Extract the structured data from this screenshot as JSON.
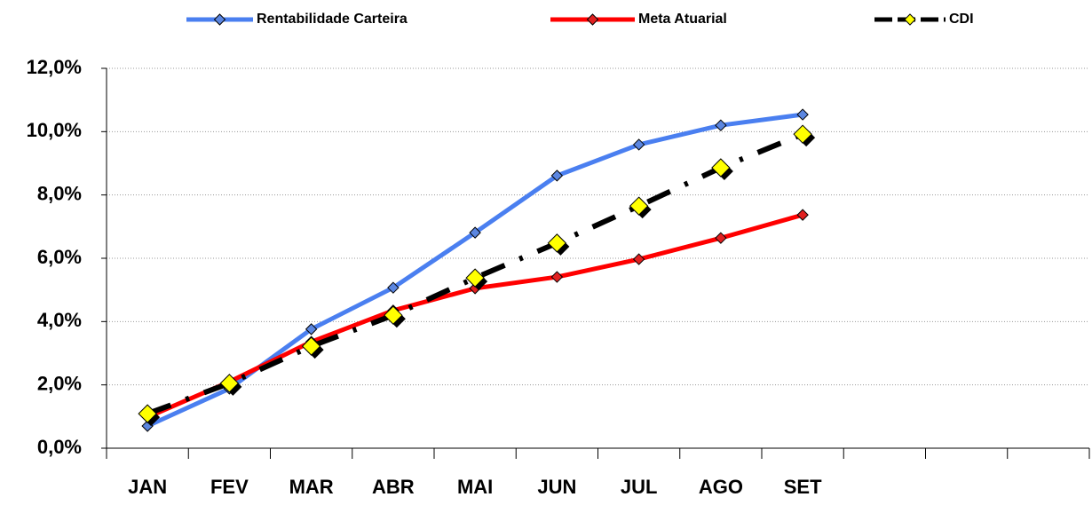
{
  "chart_data": {
    "type": "line",
    "categories": [
      "JAN",
      "FEV",
      "MAR",
      "ABR",
      "MAI",
      "JUN",
      "JUL",
      "AGO",
      "SET",
      null,
      null,
      null
    ],
    "series": [
      {
        "name": "Rentabilidade Carteira",
        "color": "#4a7ff0",
        "marker_color": "#5b86e0",
        "values": [
          0.7,
          1.88,
          3.76,
          5.07,
          6.81,
          8.61,
          9.59,
          10.2,
          10.54,
          null,
          null,
          null
        ]
      },
      {
        "name": "Meta Atuarial",
        "color": "#ff0000",
        "marker_color": "#e02020",
        "values": [
          0.98,
          2.1,
          3.36,
          4.35,
          5.05,
          5.41,
          5.97,
          6.64,
          7.37,
          null,
          null,
          null
        ]
      },
      {
        "name": "CDI",
        "color": "#000000",
        "marker_color": "#ffff00",
        "dashed": true,
        "values": [
          1.09,
          2.05,
          3.22,
          4.2,
          5.38,
          6.48,
          7.65,
          8.86,
          9.92,
          null,
          null,
          null
        ]
      }
    ],
    "ylim": [
      0,
      12
    ],
    "yticks": [
      {
        "value": 0,
        "label": "0,0%"
      },
      {
        "value": 2,
        "label": "2,0%"
      },
      {
        "value": 4,
        "label": "4,0%"
      },
      {
        "value": 6,
        "label": "6,0%"
      },
      {
        "value": 8,
        "label": "8,0%"
      },
      {
        "value": 10,
        "label": "10,0%"
      },
      {
        "value": 12,
        "label": "12,0%"
      }
    ],
    "grid": true,
    "legend": "top"
  }
}
